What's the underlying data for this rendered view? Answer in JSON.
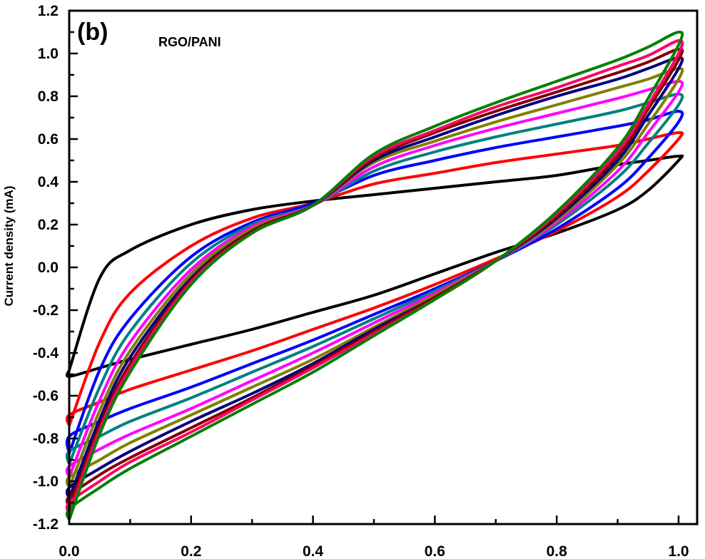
{
  "chart_data": {
    "type": "line",
    "title": "",
    "xlabel": "",
    "ylabel": "Current density (mA)",
    "xlim": [
      0,
      1.0
    ],
    "ylim": [
      -1.2,
      1.2
    ],
    "x_ticks": [
      "0.0",
      "0.2",
      "0.4",
      "0.6",
      "0.8",
      "1.0"
    ],
    "y_ticks": [
      "-1.2",
      "-1.0",
      "-0.8",
      "-0.6",
      "-0.4",
      "-0.2",
      "0.0",
      "0.2",
      "0.4",
      "0.6",
      "0.8",
      "1.0",
      "1.2"
    ],
    "grid": false,
    "annotations": [
      "(b)",
      "RGO/PANI"
    ],
    "series": [
      {
        "color": "#000000",
        "upper": [
          [
            0,
            -0.48
          ],
          [
            0.05,
            -0.05
          ],
          [
            0.1,
            0.08
          ],
          [
            0.2,
            0.2
          ],
          [
            0.3,
            0.27
          ],
          [
            0.4,
            0.31
          ],
          [
            0.5,
            0.34
          ],
          [
            0.6,
            0.37
          ],
          [
            0.7,
            0.4
          ],
          [
            0.8,
            0.43
          ],
          [
            0.9,
            0.48
          ],
          [
            0.95,
            0.5
          ],
          [
            1.0,
            0.52
          ]
        ],
        "lower": [
          [
            1.0,
            0.5
          ],
          [
            0.95,
            0.36
          ],
          [
            0.9,
            0.27
          ],
          [
            0.8,
            0.16
          ],
          [
            0.7,
            0.07
          ],
          [
            0.6,
            -0.03
          ],
          [
            0.5,
            -0.13
          ],
          [
            0.4,
            -0.21
          ],
          [
            0.3,
            -0.29
          ],
          [
            0.2,
            -0.36
          ],
          [
            0.1,
            -0.43
          ],
          [
            0.05,
            -0.47
          ],
          [
            0,
            -0.51
          ]
        ]
      },
      {
        "color": "#ff0000",
        "upper": [
          [
            0,
            -0.74
          ],
          [
            0.05,
            -0.35
          ],
          [
            0.1,
            -0.12
          ],
          [
            0.2,
            0.1
          ],
          [
            0.3,
            0.23
          ],
          [
            0.4,
            0.3
          ],
          [
            0.5,
            0.39
          ],
          [
            0.6,
            0.44
          ],
          [
            0.7,
            0.49
          ],
          [
            0.8,
            0.53
          ],
          [
            0.9,
            0.57
          ],
          [
            0.95,
            0.6
          ],
          [
            1.0,
            0.63
          ]
        ],
        "lower": [
          [
            1.0,
            0.6
          ],
          [
            0.95,
            0.45
          ],
          [
            0.9,
            0.33
          ],
          [
            0.8,
            0.17
          ],
          [
            0.7,
            0.04
          ],
          [
            0.6,
            -0.08
          ],
          [
            0.5,
            -0.19
          ],
          [
            0.4,
            -0.29
          ],
          [
            0.3,
            -0.39
          ],
          [
            0.2,
            -0.48
          ],
          [
            0.1,
            -0.57
          ],
          [
            0.05,
            -0.63
          ],
          [
            0,
            -0.69
          ]
        ]
      },
      {
        "color": "#0000ff",
        "upper": [
          [
            0,
            -0.87
          ],
          [
            0.05,
            -0.48
          ],
          [
            0.1,
            -0.24
          ],
          [
            0.2,
            0.05
          ],
          [
            0.3,
            0.21
          ],
          [
            0.4,
            0.3
          ],
          [
            0.5,
            0.43
          ],
          [
            0.6,
            0.5
          ],
          [
            0.7,
            0.56
          ],
          [
            0.8,
            0.61
          ],
          [
            0.9,
            0.66
          ],
          [
            0.95,
            0.69
          ],
          [
            1.0,
            0.73
          ]
        ],
        "lower": [
          [
            1.0,
            0.68
          ],
          [
            0.95,
            0.51
          ],
          [
            0.9,
            0.37
          ],
          [
            0.8,
            0.18
          ],
          [
            0.7,
            0.03
          ],
          [
            0.6,
            -0.1
          ],
          [
            0.5,
            -0.22
          ],
          [
            0.4,
            -0.34
          ],
          [
            0.3,
            -0.45
          ],
          [
            0.2,
            -0.56
          ],
          [
            0.1,
            -0.66
          ],
          [
            0.05,
            -0.72
          ],
          [
            0,
            -0.79
          ]
        ]
      },
      {
        "color": "#008080",
        "upper": [
          [
            0,
            -0.92
          ],
          [
            0.05,
            -0.56
          ],
          [
            0.1,
            -0.3
          ],
          [
            0.2,
            0.02
          ],
          [
            0.3,
            0.2
          ],
          [
            0.4,
            0.29
          ],
          [
            0.5,
            0.45
          ],
          [
            0.6,
            0.54
          ],
          [
            0.7,
            0.61
          ],
          [
            0.8,
            0.67
          ],
          [
            0.9,
            0.73
          ],
          [
            0.95,
            0.77
          ],
          [
            1.0,
            0.81
          ]
        ],
        "lower": [
          [
            1.0,
            0.76
          ],
          [
            0.95,
            0.58
          ],
          [
            0.9,
            0.42
          ],
          [
            0.8,
            0.2
          ],
          [
            0.7,
            0.03
          ],
          [
            0.6,
            -0.11
          ],
          [
            0.5,
            -0.24
          ],
          [
            0.4,
            -0.37
          ],
          [
            0.3,
            -0.49
          ],
          [
            0.2,
            -0.61
          ],
          [
            0.1,
            -0.72
          ],
          [
            0.05,
            -0.79
          ],
          [
            0,
            -0.86
          ]
        ]
      },
      {
        "color": "#ff00ff",
        "upper": [
          [
            0,
            -0.98
          ],
          [
            0.05,
            -0.62
          ],
          [
            0.1,
            -0.35
          ],
          [
            0.2,
            -0.01
          ],
          [
            0.3,
            0.19
          ],
          [
            0.4,
            0.29
          ],
          [
            0.5,
            0.47
          ],
          [
            0.6,
            0.57
          ],
          [
            0.7,
            0.65
          ],
          [
            0.8,
            0.72
          ],
          [
            0.9,
            0.79
          ],
          [
            0.95,
            0.83
          ],
          [
            1.0,
            0.87
          ]
        ],
        "lower": [
          [
            1.0,
            0.82
          ],
          [
            0.95,
            0.63
          ],
          [
            0.9,
            0.45
          ],
          [
            0.8,
            0.21
          ],
          [
            0.7,
            0.03
          ],
          [
            0.6,
            -0.12
          ],
          [
            0.5,
            -0.26
          ],
          [
            0.4,
            -0.4
          ],
          [
            0.3,
            -0.53
          ],
          [
            0.2,
            -0.66
          ],
          [
            0.1,
            -0.78
          ],
          [
            0.05,
            -0.85
          ],
          [
            0,
            -0.93
          ]
        ]
      },
      {
        "color": "#808000",
        "upper": [
          [
            0,
            -1.03
          ],
          [
            0.05,
            -0.67
          ],
          [
            0.1,
            -0.39
          ],
          [
            0.2,
            -0.03
          ],
          [
            0.3,
            0.18
          ],
          [
            0.4,
            0.29
          ],
          [
            0.5,
            0.49
          ],
          [
            0.6,
            0.59
          ],
          [
            0.7,
            0.68
          ],
          [
            0.8,
            0.76
          ],
          [
            0.9,
            0.84
          ],
          [
            0.95,
            0.88
          ],
          [
            1.0,
            0.93
          ]
        ],
        "lower": [
          [
            1.0,
            0.88
          ],
          [
            0.95,
            0.67
          ],
          [
            0.9,
            0.48
          ],
          [
            0.8,
            0.22
          ],
          [
            0.7,
            0.03
          ],
          [
            0.6,
            -0.13
          ],
          [
            0.5,
            -0.28
          ],
          [
            0.4,
            -0.43
          ],
          [
            0.3,
            -0.56
          ],
          [
            0.2,
            -0.69
          ],
          [
            0.1,
            -0.82
          ],
          [
            0.05,
            -0.9
          ],
          [
            0,
            -0.98
          ]
        ]
      },
      {
        "color": "#000080",
        "upper": [
          [
            0,
            -1.08
          ],
          [
            0.05,
            -0.71
          ],
          [
            0.1,
            -0.42
          ],
          [
            0.2,
            -0.05
          ],
          [
            0.3,
            0.17
          ],
          [
            0.4,
            0.29
          ],
          [
            0.5,
            0.5
          ],
          [
            0.6,
            0.61
          ],
          [
            0.7,
            0.71
          ],
          [
            0.8,
            0.8
          ],
          [
            0.9,
            0.88
          ],
          [
            0.95,
            0.93
          ],
          [
            1.0,
            0.98
          ]
        ],
        "lower": [
          [
            1.0,
            0.93
          ],
          [
            0.95,
            0.71
          ],
          [
            0.9,
            0.5
          ],
          [
            0.8,
            0.23
          ],
          [
            0.7,
            0.03
          ],
          [
            0.6,
            -0.14
          ],
          [
            0.5,
            -0.29
          ],
          [
            0.4,
            -0.45
          ],
          [
            0.3,
            -0.59
          ],
          [
            0.2,
            -0.72
          ],
          [
            0.1,
            -0.86
          ],
          [
            0.05,
            -0.94
          ],
          [
            0,
            -1.03
          ]
        ]
      },
      {
        "color": "#800000",
        "upper": [
          [
            0,
            -1.12
          ],
          [
            0.05,
            -0.74
          ],
          [
            0.1,
            -0.45
          ],
          [
            0.2,
            -0.06
          ],
          [
            0.3,
            0.17
          ],
          [
            0.4,
            0.29
          ],
          [
            0.5,
            0.51
          ],
          [
            0.6,
            0.63
          ],
          [
            0.7,
            0.73
          ],
          [
            0.8,
            0.82
          ],
          [
            0.9,
            0.91
          ],
          [
            0.95,
            0.96
          ],
          [
            1.0,
            1.02
          ]
        ],
        "lower": [
          [
            1.0,
            0.97
          ],
          [
            0.95,
            0.74
          ],
          [
            0.9,
            0.52
          ],
          [
            0.8,
            0.24
          ],
          [
            0.7,
            0.03
          ],
          [
            0.6,
            -0.14
          ],
          [
            0.5,
            -0.3
          ],
          [
            0.4,
            -0.46
          ],
          [
            0.3,
            -0.61
          ],
          [
            0.2,
            -0.75
          ],
          [
            0.1,
            -0.89
          ],
          [
            0.05,
            -0.97
          ],
          [
            0,
            -1.07
          ]
        ]
      },
      {
        "color": "#ff0066",
        "upper": [
          [
            0,
            -1.15
          ],
          [
            0.05,
            -0.76
          ],
          [
            0.1,
            -0.47
          ],
          [
            0.2,
            -0.07
          ],
          [
            0.3,
            0.16
          ],
          [
            0.4,
            0.29
          ],
          [
            0.5,
            0.52
          ],
          [
            0.6,
            0.64
          ],
          [
            0.7,
            0.75
          ],
          [
            0.8,
            0.84
          ],
          [
            0.9,
            0.94
          ],
          [
            0.95,
            0.99
          ],
          [
            1.0,
            1.06
          ]
        ],
        "lower": [
          [
            1.0,
            1.0
          ],
          [
            0.95,
            0.76
          ],
          [
            0.9,
            0.54
          ],
          [
            0.8,
            0.25
          ],
          [
            0.7,
            0.03
          ],
          [
            0.6,
            -0.15
          ],
          [
            0.5,
            -0.31
          ],
          [
            0.4,
            -0.47
          ],
          [
            0.3,
            -0.62
          ],
          [
            0.2,
            -0.77
          ],
          [
            0.1,
            -0.91
          ],
          [
            0.05,
            -1.0
          ],
          [
            0,
            -1.1
          ]
        ]
      },
      {
        "color": "#008000",
        "upper": [
          [
            0,
            -1.18
          ],
          [
            0.05,
            -0.78
          ],
          [
            0.1,
            -0.49
          ],
          [
            0.2,
            -0.08
          ],
          [
            0.3,
            0.16
          ],
          [
            0.4,
            0.29
          ],
          [
            0.5,
            0.53
          ],
          [
            0.6,
            0.66
          ],
          [
            0.7,
            0.77
          ],
          [
            0.8,
            0.87
          ],
          [
            0.9,
            0.97
          ],
          [
            0.95,
            1.03
          ],
          [
            1.0,
            1.1
          ]
        ],
        "lower": [
          [
            1.0,
            1.04
          ],
          [
            0.95,
            0.79
          ],
          [
            0.9,
            0.56
          ],
          [
            0.8,
            0.26
          ],
          [
            0.7,
            0.03
          ],
          [
            0.6,
            -0.15
          ],
          [
            0.5,
            -0.32
          ],
          [
            0.4,
            -0.49
          ],
          [
            0.3,
            -0.64
          ],
          [
            0.2,
            -0.79
          ],
          [
            0.1,
            -0.94
          ],
          [
            0.05,
            -1.03
          ],
          [
            0,
            -1.13
          ]
        ]
      }
    ]
  }
}
